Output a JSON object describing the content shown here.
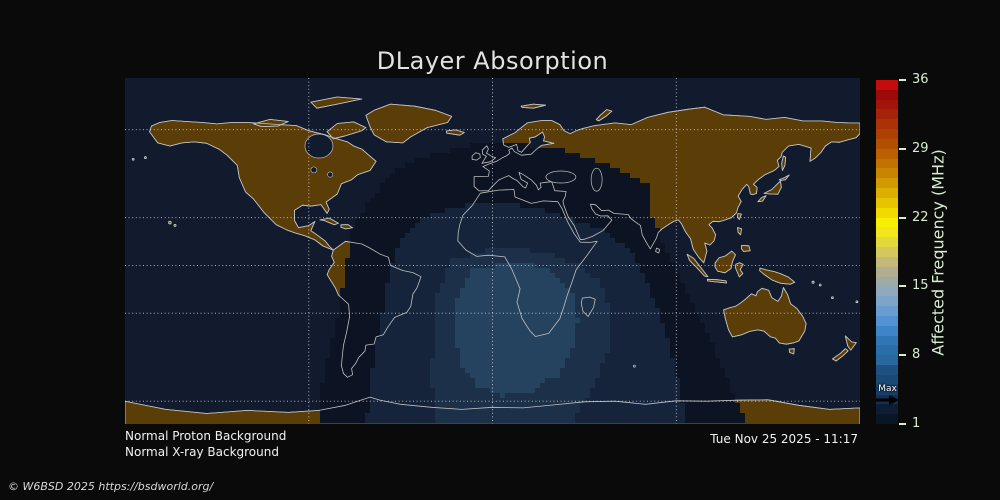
{
  "title": "DLayer Absorption",
  "status": {
    "line1": "Normal Proton Background",
    "line2": "Normal X-ray Background"
  },
  "timestamp": "Tue Nov 25 2025 - 11:17",
  "copyright": "© W6BSD 2025 https://bsdworld.org/",
  "colorbar": {
    "axis_label": "Affected Frequency (MHz)",
    "max_label": "Max",
    "ticks": [
      "36",
      "29",
      "22",
      "15",
      "8",
      "1"
    ],
    "tick_values_mhz": [
      36,
      29,
      22,
      15,
      8,
      1
    ],
    "range_mhz": [
      1,
      36
    ],
    "max_marker_value_mhz": 3.5,
    "tick_color": "#d9ecd0",
    "bands_top_to_bottom": [
      "#c60b0b",
      "#9e0909",
      "#a21309",
      "#a52309",
      "#a93206",
      "#ad4103",
      "#b25001",
      "#ba6000",
      "#c27200",
      "#ca8500",
      "#d29900",
      "#dcae00",
      "#e6c400",
      "#f0da00",
      "#f8ee02",
      "#f2e51c",
      "#e3d83a",
      "#d3c85a",
      "#c3b97a",
      "#b2ad90",
      "#a0aaa4",
      "#90a9bb",
      "#7da5c9",
      "#699dd2",
      "#5292d2",
      "#3d85c8",
      "#2f77b4",
      "#2a6ea9",
      "#27689f",
      "#1e5181",
      "#1a4a74",
      "#16406b",
      "#123050",
      "#0d1d33",
      "#0a1526"
    ]
  },
  "map": {
    "colors": {
      "background": "#0a0a0a",
      "night_ocean": "#121b2e",
      "land": "#5b3d07",
      "coastline": "#c0c0c0",
      "grid": "#f0f0f0",
      "zone1": "#0c1322",
      "zone2": "#15243a",
      "zone3": "#1c3149",
      "zone4": "#25425f",
      "inland_sea": "#0e1826"
    },
    "gridlines": {
      "lat_deg": [
        66.5,
        23.4,
        0,
        -23.4,
        -66.5
      ],
      "lon_deg": [
        -90,
        0,
        90
      ]
    },
    "zones_mhz": [
      1,
      2,
      3,
      3.5
    ]
  },
  "chart_data": {
    "type": "heatmap",
    "title": "DLayer Absorption",
    "colorbar_label": "Affected Frequency (MHz)",
    "colorbar_ticks_mhz": [
      36,
      29,
      22,
      15,
      8,
      1
    ],
    "range_mhz": [
      1,
      36
    ],
    "max_affected_frequency_mhz": 3.5,
    "absorption_zone_levels_mhz": [
      1,
      2,
      3,
      3.5
    ],
    "gridlines_lat_deg": [
      66.5,
      23.4,
      0,
      -23.4,
      -66.5
    ],
    "gridlines_lon_deg": [
      -90,
      0,
      90
    ],
    "timestamp": "Tue Nov 25 2025 - 11:17",
    "notes_visible_text": [
      "Normal Proton Background",
      "Normal X-ray Background"
    ]
  }
}
